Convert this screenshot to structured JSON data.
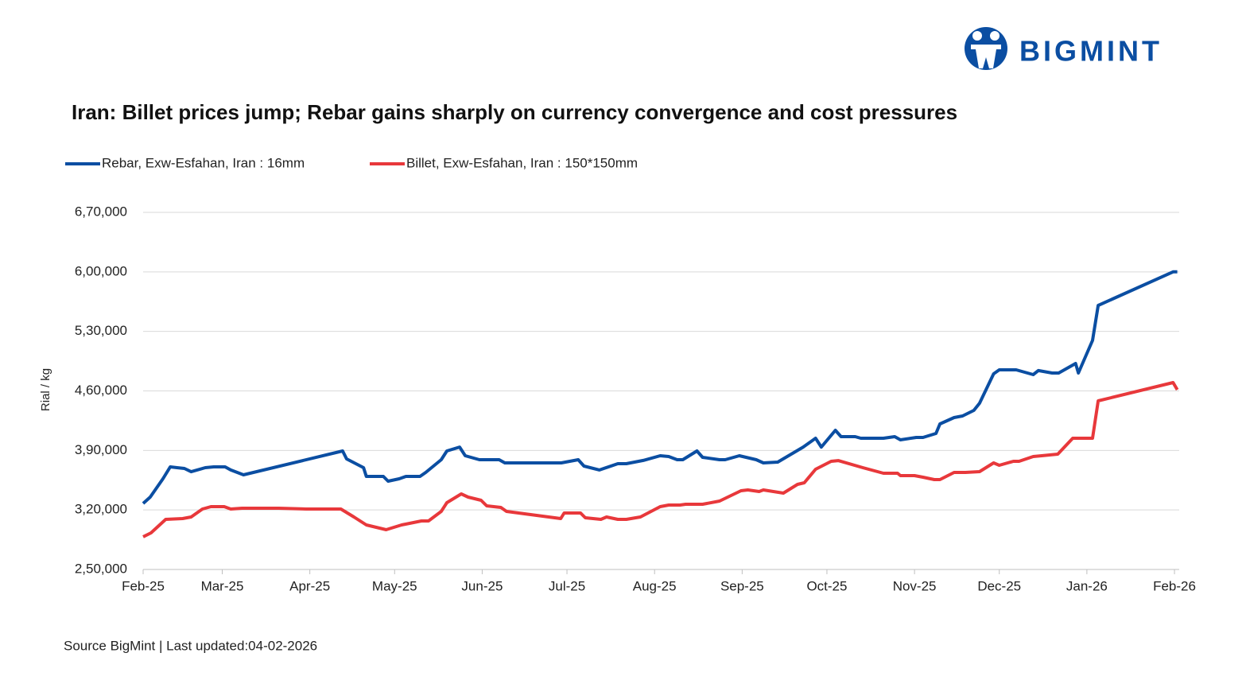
{
  "chart_data": {
    "type": "line",
    "logo_text": "BIGMINT",
    "title": "Iran: Billet prices jump; Rebar gains sharply on currency convergence and cost pressures",
    "ylabel": "Rial / kg",
    "source": "Source BigMint | Last updated:04-02-2026",
    "grid": true,
    "legend": "top-left",
    "xlim": [
      0,
      366
    ],
    "xticks": [
      {
        "value": 0,
        "label": "Feb-25"
      },
      {
        "value": 28,
        "label": "Mar-25"
      },
      {
        "value": 59,
        "label": "Apr-25"
      },
      {
        "value": 89,
        "label": "May-25"
      },
      {
        "value": 120,
        "label": "Jun-25"
      },
      {
        "value": 150,
        "label": "Jul-25"
      },
      {
        "value": 181,
        "label": "Aug-25"
      },
      {
        "value": 212,
        "label": "Sep-25"
      },
      {
        "value": 242,
        "label": "Oct-25"
      },
      {
        "value": 273,
        "label": "Nov-25"
      },
      {
        "value": 303,
        "label": "Dec-25"
      },
      {
        "value": 334,
        "label": "Jan-26"
      },
      {
        "value": 365,
        "label": "Feb-26"
      }
    ],
    "ylim": [
      250000,
      670000
    ],
    "yticks": [
      {
        "value": 250000,
        "label": "2,50,000"
      },
      {
        "value": 320000,
        "label": "3,20,000"
      },
      {
        "value": 390000,
        "label": "3,90,000"
      },
      {
        "value": 460000,
        "label": "4,60,000"
      },
      {
        "value": 530000,
        "label": "5,30,000"
      },
      {
        "value": 600000,
        "label": "6,00,000"
      },
      {
        "value": 670000,
        "label": "6,70,000"
      }
    ],
    "series": [
      {
        "name": "Rebar, Exw-Esfahan, Iran : 16mm",
        "color": "#0b4ea2",
        "x": [
          0,
          2.5,
          7,
          9.6,
          12,
          14.6,
          17,
          22,
          25,
          29,
          31,
          35.5,
          70.6,
          72,
          78,
          79,
          85,
          86.7,
          90.6,
          93,
          98,
          100,
          105.5,
          107.5,
          112,
          114,
          119,
          126,
          128,
          148,
          154,
          156,
          161.5,
          168,
          171,
          177,
          183,
          186,
          189,
          191,
          196,
          198,
          204,
          206,
          211,
          217,
          219.5,
          224.6,
          233.6,
          238,
          240,
          245,
          247,
          252,
          254,
          262,
          266,
          268,
          273.6,
          276,
          280.6,
          282,
          287,
          290,
          294,
          296,
          301,
          303,
          309,
          312,
          315,
          316.8,
          321.7,
          324,
          330,
          331,
          336,
          338,
          364.5,
          366
        ],
        "values": [
          327600,
          335100,
          356600,
          370700,
          369700,
          368800,
          365000,
          369700,
          370700,
          370700,
          367000,
          361300,
          389400,
          380000,
          369700,
          359400,
          359400,
          353800,
          356600,
          359400,
          359400,
          364100,
          379100,
          389400,
          394000,
          383800,
          379100,
          379100,
          375300,
          375300,
          379100,
          371600,
          367000,
          374400,
          374400,
          378200,
          383800,
          382800,
          379100,
          379100,
          389400,
          381900,
          379100,
          379100,
          383800,
          379100,
          375300,
          376300,
          394000,
          404300,
          394000,
          413700,
          406200,
          406200,
          404300,
          404300,
          406200,
          402500,
          405300,
          405300,
          410000,
          421200,
          428700,
          430500,
          437100,
          445500,
          480100,
          484800,
          484800,
          482000,
          479200,
          483900,
          481000,
          481000,
          492300,
          481000,
          519400,
          560600,
          600000,
          600000
        ]
      },
      {
        "name": "Billet, Exw-Esfahan, Iran : 150*150mm",
        "color": "#e8383b",
        "x": [
          0,
          2.8,
          8,
          14,
          17,
          21,
          24,
          28.7,
          31,
          35,
          48,
          57.7,
          70,
          74.6,
          79,
          86,
          91.5,
          95.7,
          98.5,
          101,
          105.5,
          107.5,
          112.6,
          115,
          119.6,
          121.6,
          126.6,
          128.6,
          147.8,
          149,
          154.8,
          156.5,
          162,
          164,
          168,
          171,
          176,
          183,
          186,
          190,
          192,
          198,
          204,
          211.6,
          214,
          218,
          219.5,
          226.6,
          231.6,
          234,
          238,
          243.5,
          246,
          254.7,
          262,
          267,
          268,
          273,
          276,
          280,
          282,
          287,
          291,
          296,
          301,
          303,
          308,
          310,
          315,
          318,
          323.7,
          329,
          336,
          338,
          364.5,
          366
        ],
        "values": [
          288400,
          293000,
          308900,
          309900,
          311700,
          321100,
          323900,
          323900,
          321100,
          322000,
          322000,
          321100,
          321100,
          311700,
          302400,
          296800,
          302400,
          305200,
          307100,
          307100,
          318300,
          328600,
          338900,
          335100,
          331400,
          324800,
          323000,
          318300,
          309900,
          316400,
          316400,
          310800,
          308900,
          311700,
          308900,
          308900,
          311700,
          323900,
          325800,
          325800,
          326700,
          326700,
          330400,
          342600,
          343500,
          341700,
          343500,
          339800,
          350100,
          352000,
          367900,
          377200,
          378100,
          369700,
          363200,
          363200,
          360400,
          360400,
          358500,
          355700,
          355700,
          364100,
          364100,
          365100,
          375300,
          372500,
          377200,
          377200,
          382800,
          383800,
          385600,
          404300,
          404300,
          448300,
          469800,
          461400
        ]
      }
    ]
  }
}
